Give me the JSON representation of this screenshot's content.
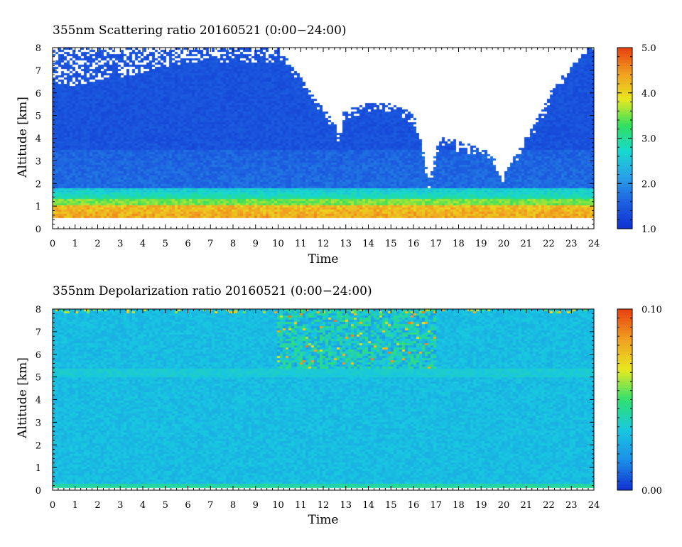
{
  "chart_data": [
    {
      "type": "heatmap",
      "title": "355nm Scattering ratio  20160521 (0:00−24:00)",
      "xlabel": "Time",
      "ylabel": "Altitude [km]",
      "xlim": [
        0,
        24
      ],
      "ylim": [
        0,
        8
      ],
      "x_ticks": [
        "0",
        "1",
        "2",
        "3",
        "4",
        "5",
        "6",
        "7",
        "8",
        "9",
        "10",
        "11",
        "12",
        "13",
        "14",
        "15",
        "16",
        "17",
        "18",
        "19",
        "20",
        "21",
        "22",
        "23",
        "24"
      ],
      "y_ticks": [
        "0",
        "1",
        "2",
        "3",
        "4",
        "5",
        "6",
        "7",
        "8"
      ],
      "colorbar": {
        "range": [
          1.0,
          5.0
        ],
        "tick_labels": [
          "1.0",
          "2.0",
          "3.0",
          "4.0",
          "5.0"
        ],
        "tick_values": [
          1.0,
          2.0,
          3.0,
          4.0,
          5.0
        ]
      },
      "features": {
        "aerosol_layer_top_km": 1.8,
        "strong_layer_km": [
          0.5,
          1.3
        ],
        "cloud_free_region_hours": [
          11,
          21
        ],
        "v_notch_hours": [
          16.7,
          19.9
        ]
      },
      "colors": [
        "#1030d0",
        "#1c5ee0",
        "#2aa0e8",
        "#18d8d0",
        "#30e060",
        "#e8e820",
        "#f0a020",
        "#e84010"
      ]
    },
    {
      "type": "heatmap",
      "title": "355nm Depolarization ratio  20160521 (0:00−24:00)",
      "xlabel": "Time",
      "ylabel": "Altitude [km]",
      "xlim": [
        0,
        24
      ],
      "ylim": [
        0,
        8
      ],
      "x_ticks": [
        "0",
        "1",
        "2",
        "3",
        "4",
        "5",
        "6",
        "7",
        "8",
        "9",
        "10",
        "11",
        "12",
        "13",
        "14",
        "15",
        "16",
        "17",
        "18",
        "19",
        "20",
        "21",
        "22",
        "23",
        "24"
      ],
      "y_ticks": [
        "0",
        "1",
        "2",
        "3",
        "4",
        "5",
        "6",
        "7",
        "8"
      ],
      "colorbar": {
        "range": [
          0.0,
          0.1
        ],
        "tick_labels": [
          "0.00",
          "0.10"
        ],
        "tick_values": [
          0.0,
          0.1
        ]
      },
      "features": {
        "elevated_band_km": 5.2,
        "noisy_region_hours": [
          10,
          17
        ],
        "surface_band_km": 0.15
      },
      "colors": [
        "#1030d0",
        "#1c8ee8",
        "#18c8e0",
        "#30e070",
        "#e8e820",
        "#f0a020",
        "#e84010"
      ]
    }
  ]
}
